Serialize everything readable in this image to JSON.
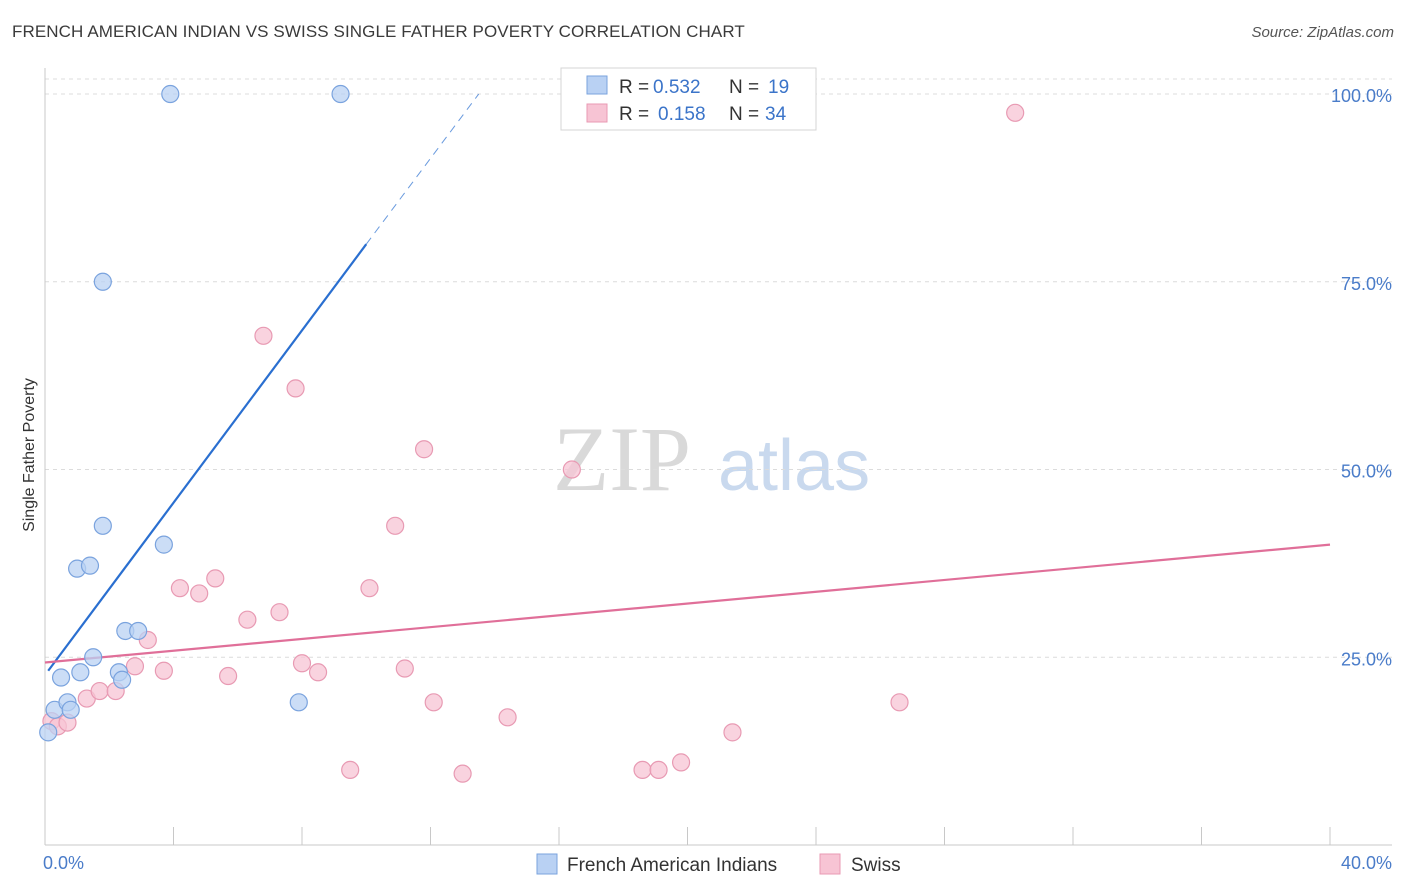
{
  "title": "FRENCH AMERICAN INDIAN VS SWISS SINGLE FATHER POVERTY CORRELATION CHART",
  "source": "Source: ZipAtlas.com",
  "watermark": {
    "zip": "ZIP",
    "atlas": "atlas"
  },
  "colors": {
    "blue_fill": "#b9d1f3",
    "blue_stroke": "#7aa3de",
    "blue_line": "#2a6fd0",
    "pink_fill": "#f7c4d4",
    "pink_stroke": "#e89ab3",
    "pink_line": "#e06f99",
    "grid": "#dcdcdc",
    "tick_label": "#4a7cc9"
  },
  "legend": {
    "rows": [
      {
        "r_label": "R =",
        "r_value": "0.532",
        "n_label": "N =",
        "n_value": "19"
      },
      {
        "r_label": "R =",
        "r_value": "0.158",
        "n_label": "N =",
        "n_value": "34"
      }
    ]
  },
  "chart_data": {
    "type": "scatter",
    "title": "FRENCH AMERICAN INDIAN VS SWISS SINGLE FATHER POVERTY CORRELATION CHART",
    "xlabel": "",
    "ylabel": "Single Father Poverty",
    "xlim": [
      0,
      40
    ],
    "ylim": [
      0,
      102
    ],
    "x_tick_labels": [
      "0.0%",
      "40.0%"
    ],
    "y_ticks": [
      25,
      50,
      75,
      100
    ],
    "y_tick_labels": [
      "25.0%",
      "50.0%",
      "75.0%",
      "100.0%"
    ],
    "grid": true,
    "legend_position": "top-center",
    "series": [
      {
        "name": "French American Indians",
        "color": "#b9d1f3",
        "r": 0.532,
        "n": 19,
        "trend": {
          "x0": 0.1,
          "y0": 23.2,
          "x1": 10.0,
          "y1": 80.0,
          "dash_x1": 13.5,
          "dash_y1": 100.0
        },
        "points": [
          [
            0.1,
            15.0
          ],
          [
            0.3,
            18.0
          ],
          [
            0.5,
            22.3
          ],
          [
            0.7,
            19.0
          ],
          [
            0.8,
            18.0
          ],
          [
            1.0,
            36.8
          ],
          [
            1.1,
            23.0
          ],
          [
            1.4,
            37.2
          ],
          [
            1.5,
            25.0
          ],
          [
            1.8,
            75.0
          ],
          [
            1.8,
            42.5
          ],
          [
            2.3,
            23.0
          ],
          [
            2.4,
            22.0
          ],
          [
            2.5,
            28.5
          ],
          [
            2.9,
            28.5
          ],
          [
            3.7,
            40.0
          ],
          [
            3.9,
            100.0
          ],
          [
            7.9,
            19.0
          ],
          [
            9.2,
            100.0
          ]
        ]
      },
      {
        "name": "Swiss",
        "color": "#f7c4d4",
        "r": 0.158,
        "n": 34,
        "trend": {
          "x0": 0.0,
          "y0": 24.3,
          "x1": 40.0,
          "y1": 40.0
        },
        "points": [
          [
            0.2,
            16.5
          ],
          [
            0.4,
            15.8
          ],
          [
            0.7,
            16.3
          ],
          [
            1.3,
            19.5
          ],
          [
            1.7,
            20.5
          ],
          [
            2.2,
            20.5
          ],
          [
            2.8,
            23.8
          ],
          [
            3.2,
            27.3
          ],
          [
            3.7,
            23.2
          ],
          [
            4.2,
            34.2
          ],
          [
            4.8,
            33.5
          ],
          [
            5.3,
            35.5
          ],
          [
            5.7,
            22.5
          ],
          [
            6.3,
            30.0
          ],
          [
            6.8,
            67.8
          ],
          [
            7.3,
            31.0
          ],
          [
            7.8,
            60.8
          ],
          [
            8.0,
            24.2
          ],
          [
            8.5,
            23.0
          ],
          [
            9.5,
            10.0
          ],
          [
            10.1,
            34.2
          ],
          [
            10.9,
            42.5
          ],
          [
            11.2,
            23.5
          ],
          [
            11.8,
            52.7
          ],
          [
            12.1,
            19.0
          ],
          [
            13.0,
            9.5
          ],
          [
            14.4,
            17.0
          ],
          [
            16.4,
            50.0
          ],
          [
            18.6,
            10.0
          ],
          [
            19.1,
            10.0
          ],
          [
            19.8,
            11.0
          ],
          [
            21.4,
            15.0
          ],
          [
            26.6,
            19.0
          ],
          [
            30.2,
            97.5
          ]
        ]
      }
    ]
  }
}
